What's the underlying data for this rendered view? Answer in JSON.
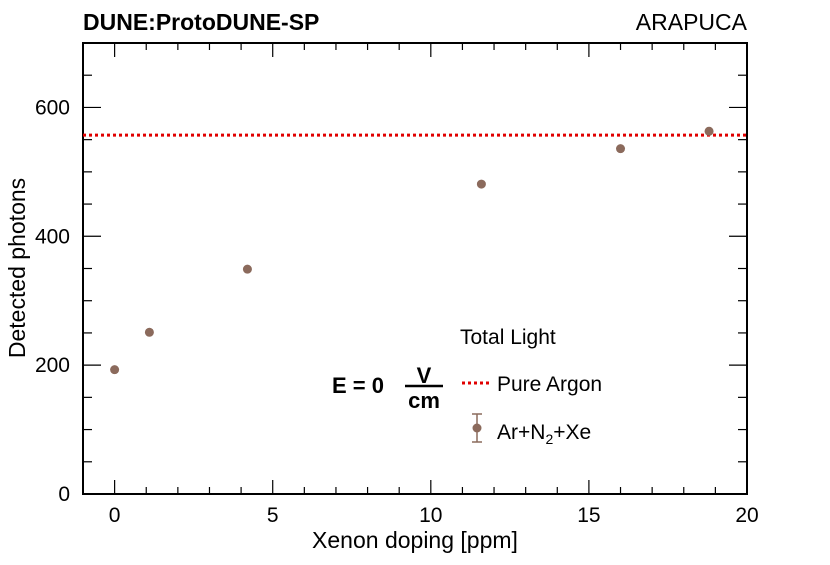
{
  "header": {
    "experiment": "DUNE:ProtoDUNE-SP",
    "detector": "ARAPUCA"
  },
  "annotation": {
    "field_prefix": "E = 0",
    "unit_numerator": "V",
    "unit_denominator": "cm"
  },
  "legend": {
    "title": "Total Light",
    "reference_label": "Pure Argon",
    "series_label_prefix": "Ar+N",
    "series_label_subscript": "2",
    "series_label_suffix": "+Xe"
  },
  "chart_data": {
    "type": "scatter",
    "title": "",
    "xlabel": "Xenon doping [ppm]",
    "ylabel": "Detected photons",
    "xlim": [
      -1,
      20
    ],
    "ylim": [
      0,
      700
    ],
    "x_ticks": [
      0,
      5,
      10,
      15,
      20
    ],
    "y_ticks": [
      0,
      200,
      400,
      600
    ],
    "grid": false,
    "legend_position": "bottom-right",
    "series": [
      {
        "name": "Ar+N2+Xe",
        "color": "#8B6A5C",
        "points": [
          {
            "x": 0,
            "y": 193
          },
          {
            "x": 1.1,
            "y": 251
          },
          {
            "x": 4.2,
            "y": 349
          },
          {
            "x": 11.6,
            "y": 481
          },
          {
            "x": 16,
            "y": 536
          },
          {
            "x": 18.8,
            "y": 563
          }
        ]
      }
    ],
    "reference_lines": [
      {
        "name": "Pure Argon",
        "y": 557,
        "color": "#E00000",
        "style": "dotted"
      }
    ]
  }
}
